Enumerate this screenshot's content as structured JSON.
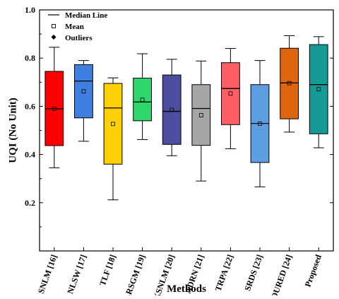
{
  "chart_data": {
    "type": "box",
    "title": "",
    "xlabel": "Methods",
    "ylabel": "UQI (No Unit)",
    "ylim": [
      0.0,
      1.0
    ],
    "yticks": [
      "0.2",
      "0.4",
      "0.6",
      "0.8",
      "1.0"
    ],
    "grid": false,
    "legend": {
      "placement": "top-left",
      "entries": [
        {
          "label": "Median Line",
          "symbol": "line"
        },
        {
          "label": "Mean",
          "symbol": "open-square"
        },
        {
          "label": "Outliers",
          "symbol": "diamond"
        }
      ]
    },
    "series": [
      {
        "category": "SNLM [16]",
        "color": "#ff0000",
        "min": 0.345,
        "q1": 0.437,
        "median": 0.59,
        "mean": 0.59,
        "q3": 0.745,
        "max": 0.845
      },
      {
        "category": "NLSW [17]",
        "color": "#3f7fe0",
        "min": 0.455,
        "q1": 0.552,
        "median": 0.705,
        "mean": 0.662,
        "q3": 0.773,
        "max": 0.79
      },
      {
        "category": "TLF [18]",
        "color": "#ffd000",
        "min": 0.212,
        "q1": 0.36,
        "median": 0.593,
        "mean": 0.527,
        "q3": 0.695,
        "max": 0.718
      },
      {
        "category": "LRSGM [19]",
        "color": "#2ed76b",
        "min": 0.462,
        "q1": 0.54,
        "median": 0.618,
        "mean": 0.627,
        "q3": 0.717,
        "max": 0.818
      },
      {
        "category": "AKSNLM [20]",
        "color": "#4d4d9f",
        "min": 0.395,
        "q1": 0.442,
        "median": 0.579,
        "mean": 0.585,
        "q3": 0.73,
        "max": 0.795
      },
      {
        "category": "ADRN [21]",
        "color": "#a6a6a6",
        "min": 0.29,
        "q1": 0.438,
        "median": 0.591,
        "mean": 0.563,
        "q3": 0.69,
        "max": 0.788
      },
      {
        "category": "TRPA [22]",
        "color": "#ff5e64",
        "min": 0.424,
        "q1": 0.524,
        "median": 0.674,
        "mean": 0.653,
        "q3": 0.781,
        "max": 0.84
      },
      {
        "category": "SRDS [23]",
        "color": "#5d9ee0",
        "min": 0.266,
        "q1": 0.367,
        "median": 0.529,
        "mean": 0.528,
        "q3": 0.69,
        "max": 0.79
      },
      {
        "category": "DURED [24]",
        "color": "#e0650f",
        "min": 0.493,
        "q1": 0.548,
        "median": 0.697,
        "mean": 0.696,
        "q3": 0.841,
        "max": 0.893
      },
      {
        "category": "Proposed",
        "color": "#159b95",
        "min": 0.428,
        "q1": 0.486,
        "median": 0.69,
        "mean": 0.671,
        "q3": 0.856,
        "max": 0.889
      }
    ]
  }
}
